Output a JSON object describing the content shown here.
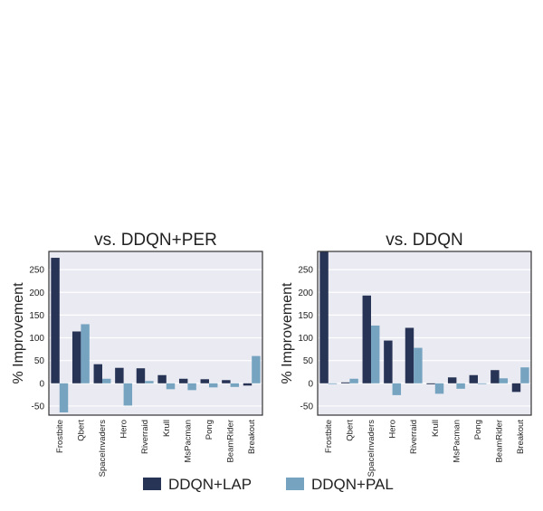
{
  "chart_data": [
    {
      "type": "bar",
      "title": "vs. DDQN+PER",
      "xlabel": "",
      "ylabel": "% Improvement",
      "categories": [
        "Frostbite",
        "Qbert",
        "SpaceInvaders",
        "Hero",
        "Riverraid",
        "Krull",
        "MsPacman",
        "Pong",
        "BeamRider",
        "Breakout"
      ],
      "series": [
        {
          "name": "DDQN+LAP",
          "values": [
            276,
            114,
            42,
            34,
            33,
            18,
            10,
            9,
            7,
            -5
          ]
        },
        {
          "name": "DDQN+PAL",
          "values": [
            -64,
            130,
            10,
            -49,
            5,
            -13,
            -15,
            -9,
            -8,
            60
          ]
        }
      ],
      "ylim": [
        -70,
        290
      ],
      "yticks": [
        -50,
        0,
        50,
        100,
        150,
        200,
        250
      ],
      "grid": true
    },
    {
      "type": "bar",
      "title": "vs. DDQN",
      "xlabel": "",
      "ylabel": "% Improvement",
      "categories": [
        "Frostbite",
        "Qbert",
        "SpaceInvaders",
        "Hero",
        "Riverraid",
        "Krull",
        "MsPacman",
        "Pong",
        "BeamRider",
        "Breakout"
      ],
      "series": [
        {
          "name": "DDQN+LAP",
          "values": [
            300,
            2,
            193,
            94,
            122,
            -2,
            13,
            18,
            29,
            -19
          ]
        },
        {
          "name": "DDQN+PAL",
          "values": [
            0,
            10,
            127,
            -26,
            78,
            -23,
            -12,
            -1,
            11,
            35
          ]
        }
      ],
      "ylim": [
        -70,
        290
      ],
      "yticks": [
        -50,
        0,
        50,
        100,
        150,
        200,
        250
      ],
      "grid": true
    }
  ],
  "legend": {
    "placement": "bottom-center",
    "entries": [
      {
        "label": "DDQN+LAP",
        "color": "#283455"
      },
      {
        "label": "DDQN+PAL",
        "color": "#76A4C0"
      }
    ]
  },
  "colors": {
    "plot_background": "#EAEAF2",
    "grid": "#FFFFFF",
    "axis": "#333333"
  }
}
